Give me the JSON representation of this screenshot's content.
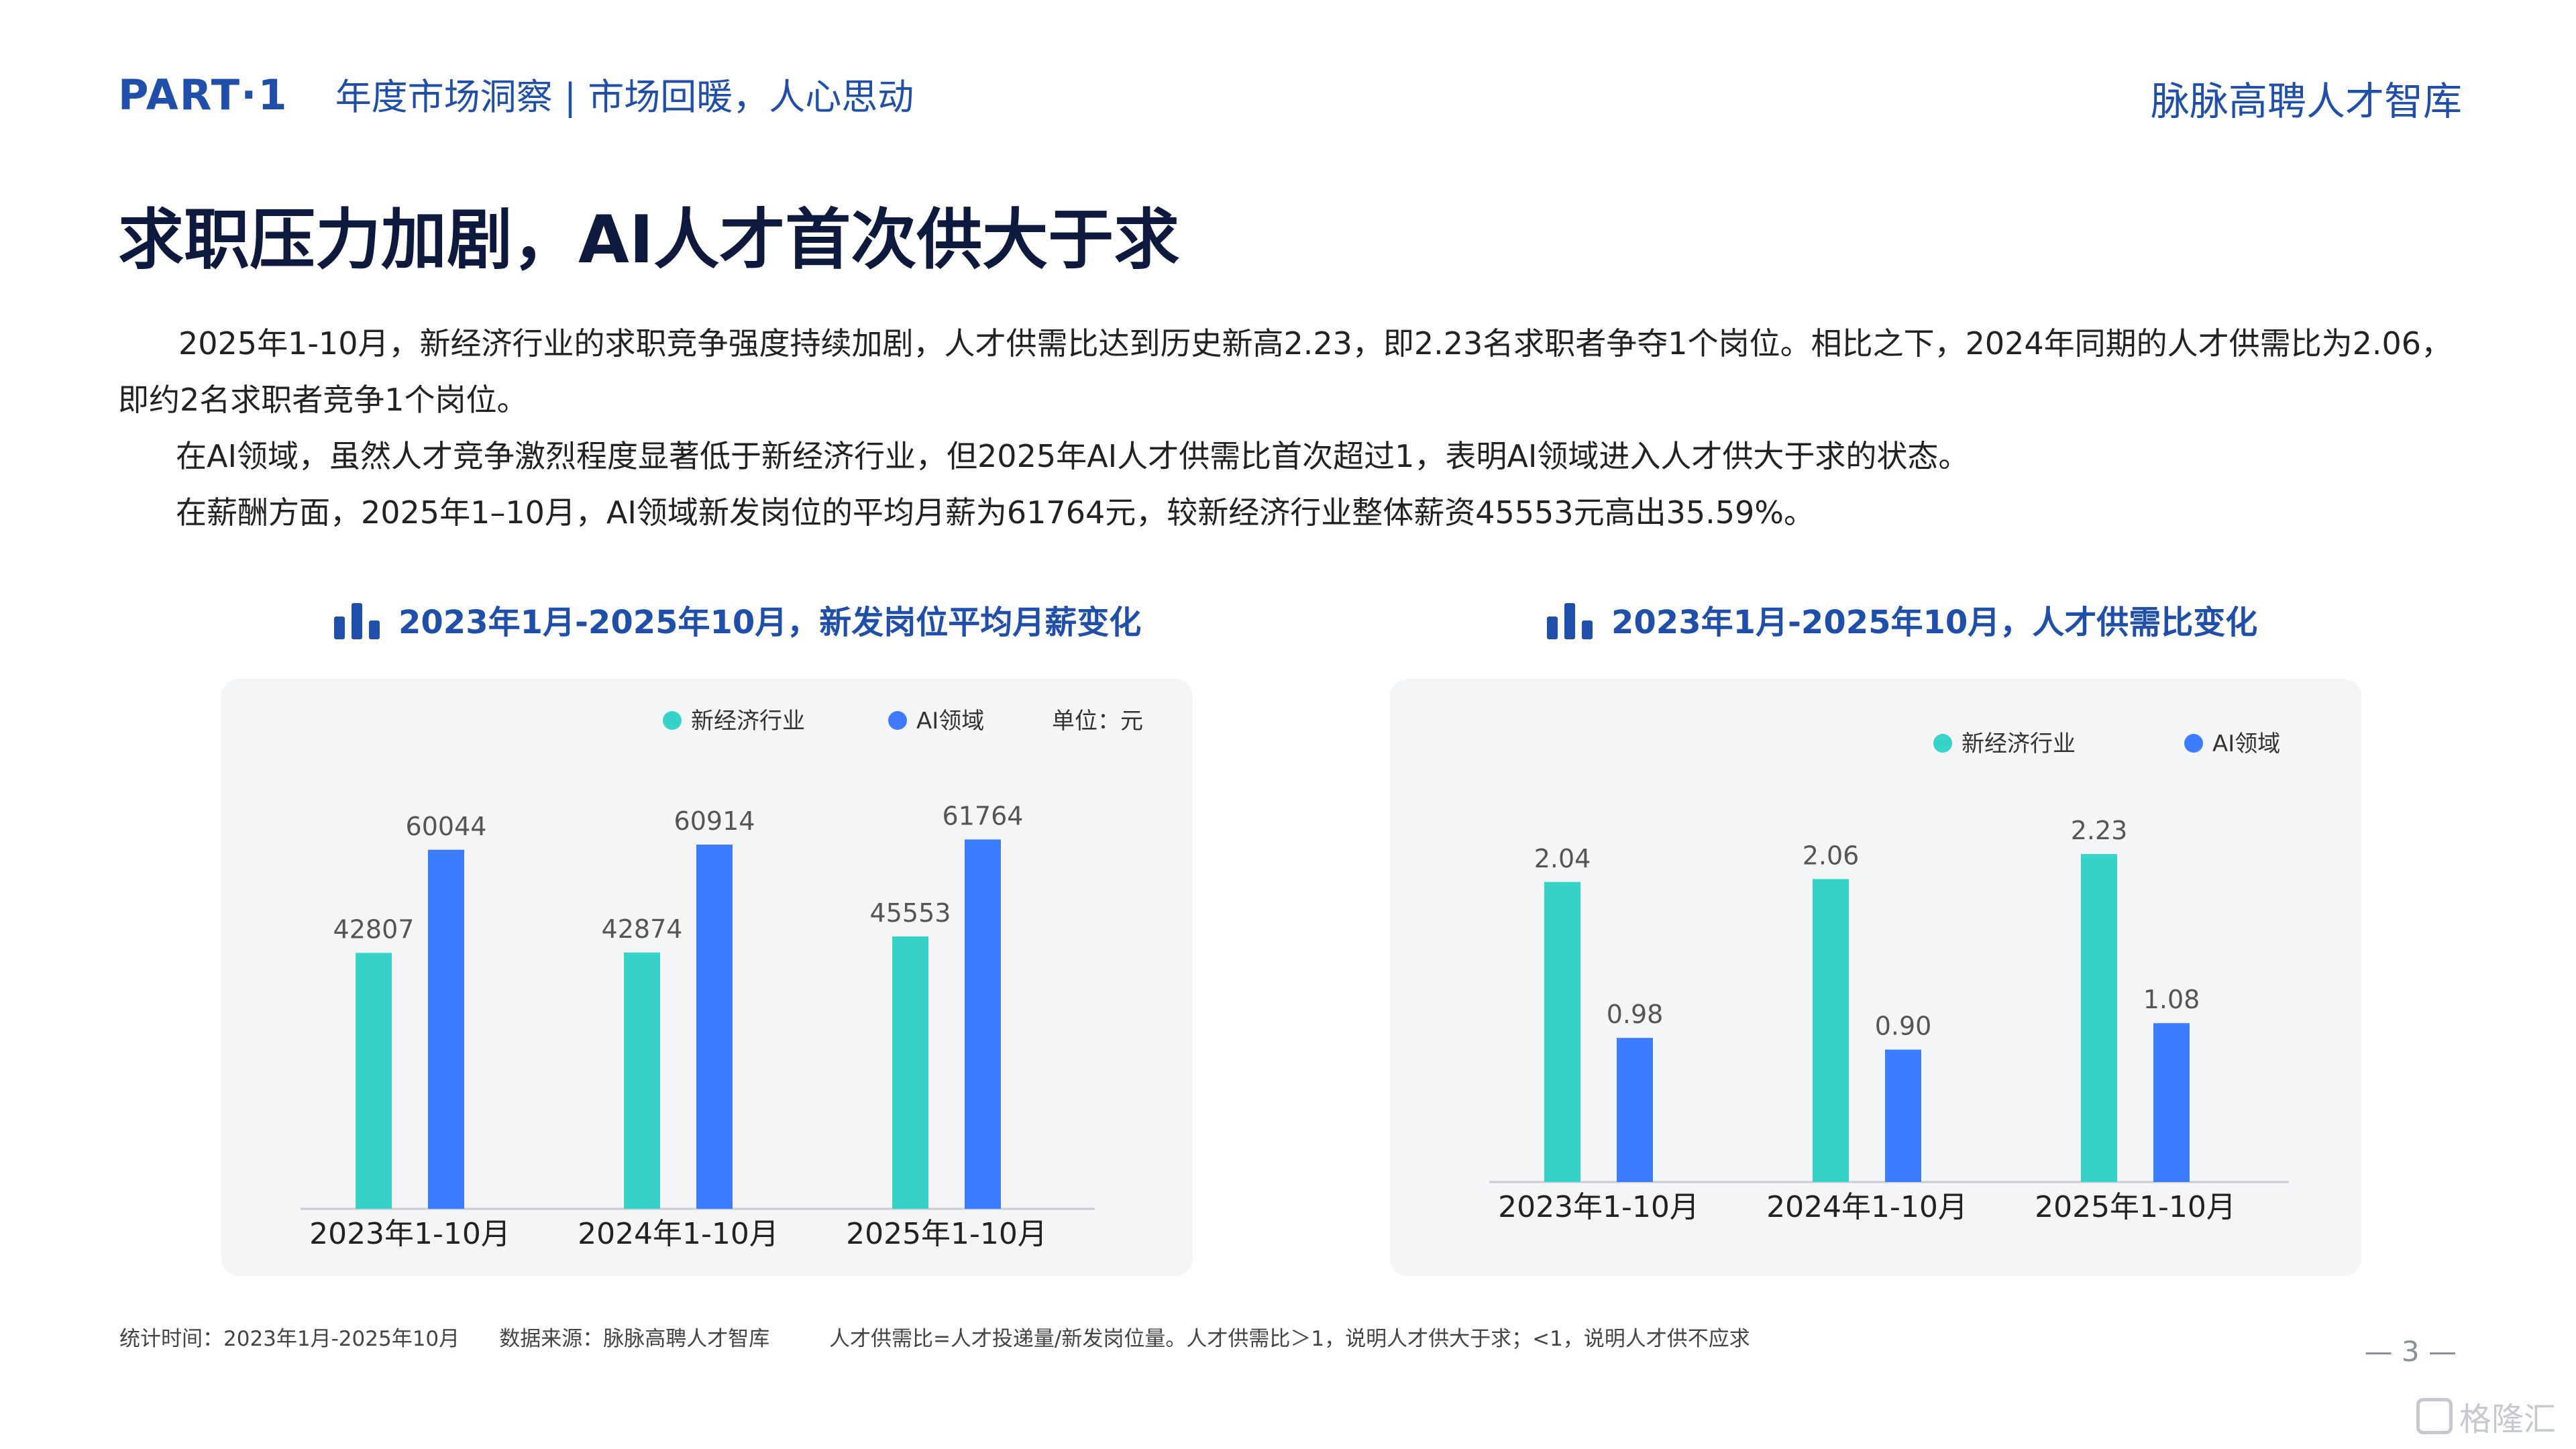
{
  "header": {
    "part": "PART·1",
    "section": "年度市场洞察 | 市场回暖，人心思动",
    "brand": "脉脉高聘人才智库"
  },
  "title": "求职压力加剧，AI人才首次供大于求",
  "paragraphs": [
    "2025年1-10月，新经济行业的求职竞争强度持续加剧，人才供需比达到历史新高2.23，即2.23名求职者争夺1个岗位。相比之下，2024年同期的人才供需比为2.06，即约2名求职者竞争1个岗位。",
    "在AI领域，虽然人才竞争激烈程度显著低于新经济行业，但2025年AI人才供需比首次超过1，表明AI领域进入人才供大于求的状态。",
    "在薪酬方面，2025年1–10月，AI领域新发岗位的平均月薪为61764元，较新经济行业整体薪资45553元高出35.59%。"
  ],
  "colors": {
    "new_economy": "#37d3c8",
    "ai": "#3d7bff",
    "title_blue": "#1f4fa8"
  },
  "chart_data": [
    {
      "type": "bar",
      "title": "2023年1月-2025年10月，新发岗位平均月薪变化",
      "unit_label": "单位：元",
      "categories": [
        "2023年1-10月",
        "2024年1-10月",
        "2025年1-10月"
      ],
      "series": [
        {
          "name": "新经济行业",
          "values": [
            42807,
            42874,
            45553
          ]
        },
        {
          "name": "AI领域",
          "values": [
            60044,
            60914,
            61764
          ]
        }
      ],
      "ylim": [
        0,
        70000
      ],
      "value_labels": {
        "new_economy": [
          "42807",
          "42874",
          "45553"
        ],
        "ai": [
          "60044",
          "60914",
          "61764"
        ]
      },
      "legend_position": "top-right"
    },
    {
      "type": "bar",
      "title": "2023年1月-2025年10月，人才供需比变化",
      "categories": [
        "2023年1-10月",
        "2024年1-10月",
        "2025年1-10月"
      ],
      "series": [
        {
          "name": "新经济行业",
          "values": [
            2.04,
            2.06,
            2.23
          ]
        },
        {
          "name": "AI领域",
          "values": [
            0.98,
            0.9,
            1.08
          ]
        }
      ],
      "ylim": [
        0,
        2.6
      ],
      "value_labels": {
        "new_economy": [
          "2.04",
          "2.06",
          "2.23"
        ],
        "ai": [
          "0.98",
          "0.90",
          "1.08"
        ]
      },
      "legend_position": "top-right"
    }
  ],
  "footer": {
    "stat_time": "统计时间：2023年1月-2025年10月",
    "source": "数据来源：脉脉高聘人才智库",
    "note": "人才供需比=人才投递量/新发岗位量。人才供需比＞1，说明人才供大于求；<1，说明人才供不应求"
  },
  "page_number": "— 3 —",
  "watermark": "格隆汇"
}
